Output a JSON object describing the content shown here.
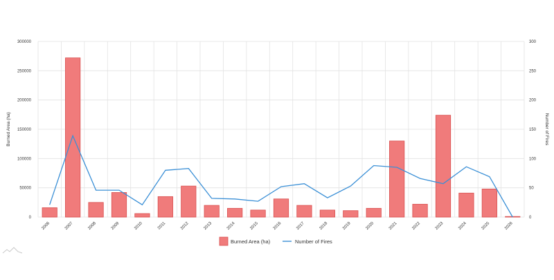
{
  "chart_data": {
    "type": "bar",
    "categories": [
      "2006",
      "2007",
      "2008",
      "2009",
      "2010",
      "2011",
      "2012",
      "2013",
      "2014",
      "2015",
      "2016",
      "2017",
      "2018",
      "2019",
      "2020",
      "2021",
      "2022",
      "2023",
      "2024",
      "2025",
      "2026"
    ],
    "series": [
      {
        "name": "Burned Area (ha)",
        "type": "bar",
        "axis": "left",
        "color": "#f07b7b",
        "values": [
          16000,
          272000,
          25000,
          42000,
          6000,
          35000,
          53000,
          20000,
          15000,
          12000,
          31000,
          20000,
          12000,
          11000,
          15000,
          130000,
          22000,
          174000,
          41000,
          48000,
          1000
        ]
      },
      {
        "name": "Number of Fires",
        "type": "line",
        "axis": "right",
        "color": "#3a8fd6",
        "values": [
          21,
          139,
          46,
          46,
          21,
          80,
          83,
          32,
          31,
          27,
          52,
          57,
          33,
          53,
          88,
          85,
          66,
          57,
          86,
          69,
          0
        ]
      }
    ],
    "ylabel": "Burned Area (ha)",
    "y2label": "Number of Fires",
    "ylim": [
      0,
      300000
    ],
    "y2lim": [
      0,
      300
    ],
    "yticks": [
      "0",
      "50000",
      "100000",
      "150000",
      "200000",
      "250000",
      "300000"
    ],
    "y2ticks": [
      "0",
      "50",
      "100",
      "150",
      "200",
      "250",
      "300"
    ],
    "grid": true,
    "legend": "bottom-center"
  }
}
